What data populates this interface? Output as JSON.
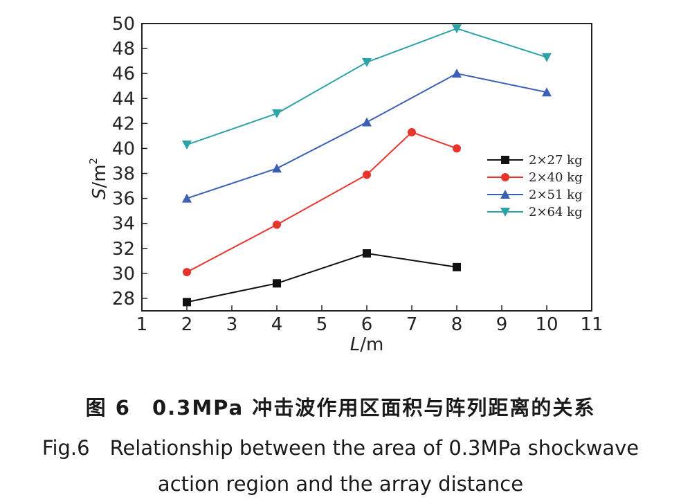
{
  "chart_data": {
    "type": "line",
    "xlabel_italic": "L",
    "xlabel_unit": "/m",
    "ylabel_italic": "S",
    "ylabel_unit": "/m",
    "ylabel_sup": "2",
    "xlim": [
      1,
      11
    ],
    "ylim": [
      27,
      50
    ],
    "xticks": [
      1,
      2,
      3,
      4,
      5,
      6,
      7,
      8,
      9,
      10,
      11
    ],
    "yticks": [
      28,
      30,
      32,
      34,
      36,
      38,
      40,
      42,
      44,
      46,
      48,
      50
    ],
    "legend_position": "right",
    "series": [
      {
        "name": "2×27 kg",
        "color": "#111111",
        "marker": "square",
        "x": [
          2,
          4,
          6,
          8
        ],
        "y": [
          27.7,
          29.2,
          31.6,
          30.5
        ]
      },
      {
        "name": "2×40 kg",
        "color": "#e8352c",
        "marker": "circle",
        "x": [
          2,
          4,
          6,
          7,
          8
        ],
        "y": [
          30.1,
          33.9,
          37.9,
          41.3,
          40.0
        ]
      },
      {
        "name": "2×51 kg",
        "color": "#3a5fb5",
        "marker": "triangle-up",
        "x": [
          2,
          4,
          6,
          8,
          10
        ],
        "y": [
          36.0,
          38.4,
          42.1,
          46.0,
          44.5
        ]
      },
      {
        "name": "2×64 kg",
        "color": "#2ea3a6",
        "marker": "triangle-down",
        "x": [
          2,
          4,
          6,
          8,
          10
        ],
        "y": [
          40.3,
          42.8,
          46.9,
          49.6,
          47.3
        ]
      }
    ]
  },
  "caption": {
    "cn": "图 6　0.3MPa 冲击波作用区面积与阵列距离的关系",
    "en_line1": "Fig.6　Relationship between the area of 0.3MPa shockwave",
    "en_line2": "action region and the array distance"
  }
}
